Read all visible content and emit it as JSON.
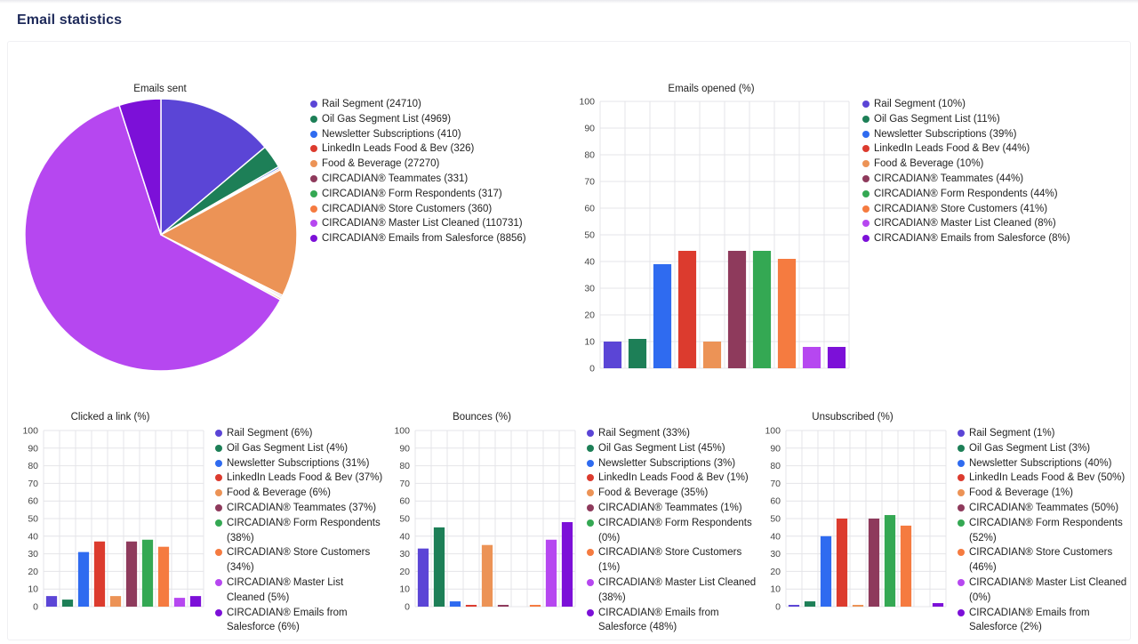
{
  "page": {
    "title": "Email statistics"
  },
  "colors": {
    "segments": [
      "#5b45d6",
      "#1d7f57",
      "#2f6bf0",
      "#dc3b2e",
      "#ec9356",
      "#8e3a5c",
      "#34a853",
      "#f57b40",
      "#b647f0",
      "#7c10d8"
    ],
    "grid": "#e4e4e8",
    "axis": "#444444"
  },
  "chart_data": [
    {
      "id": "emails-sent",
      "type": "pie",
      "title": "Emails sent",
      "labels": [
        "Rail Segment",
        "Oil Gas Segment List",
        "Newsletter Subscriptions",
        "LinkedIn Leads Food & Bev",
        "Food & Beverage",
        "CIRCADIAN® Teammates",
        "CIRCADIAN® Form Respondents",
        "CIRCADIAN® Store Customers",
        "CIRCADIAN® Master List Cleaned",
        "CIRCADIAN® Emails from Salesforce"
      ],
      "values": [
        24710,
        4969,
        410,
        326,
        27270,
        331,
        317,
        360,
        110731,
        8856
      ],
      "legend": [
        "Rail Segment (24710)",
        "Oil Gas Segment List (4969)",
        "Newsletter Subscriptions (410)",
        "LinkedIn Leads Food & Bev (326)",
        "Food & Beverage (27270)",
        "CIRCADIAN® Teammates (331)",
        "CIRCADIAN® Form Respondents (317)",
        "CIRCADIAN® Store Customers (360)",
        "CIRCADIAN® Master List Cleaned (110731)",
        "CIRCADIAN® Emails from Salesforce (8856)"
      ],
      "legend_position": "right"
    },
    {
      "id": "emails-opened",
      "type": "bar",
      "title": "Emails opened (%)",
      "categories": [
        "Rail Segment",
        "Oil Gas Segment List",
        "Newsletter Subscriptions",
        "LinkedIn Leads Food & Bev",
        "Food & Beverage",
        "CIRCADIAN® Teammates",
        "CIRCADIAN® Form Respondents",
        "CIRCADIAN® Store Customers",
        "CIRCADIAN® Master List Cleaned",
        "CIRCADIAN® Emails from Salesforce"
      ],
      "values": [
        10,
        11,
        39,
        44,
        10,
        44,
        44,
        41,
        8,
        8
      ],
      "ylim": [
        0,
        100
      ],
      "yticks": [
        0,
        10,
        20,
        30,
        40,
        50,
        60,
        70,
        80,
        90,
        100
      ],
      "grid": true,
      "legend": [
        "Rail Segment (10%)",
        "Oil Gas Segment List (11%)",
        "Newsletter Subscriptions (39%)",
        "LinkedIn Leads Food & Bev (44%)",
        "Food & Beverage (10%)",
        "CIRCADIAN® Teammates (44%)",
        "CIRCADIAN® Form Respondents (44%)",
        "CIRCADIAN® Store Customers (41%)",
        "CIRCADIAN® Master List Cleaned (8%)",
        "CIRCADIAN® Emails from Salesforce (8%)"
      ],
      "legend_position": "right"
    },
    {
      "id": "clicked-a-link",
      "type": "bar",
      "title": "Clicked a link (%)",
      "categories": [
        "Rail Segment",
        "Oil Gas Segment List",
        "Newsletter Subscriptions",
        "LinkedIn Leads Food & Bev",
        "Food & Beverage",
        "CIRCADIAN® Teammates",
        "CIRCADIAN® Form Respondents",
        "CIRCADIAN® Store Customers",
        "CIRCADIAN® Master List Cleaned",
        "CIRCADIAN® Emails from Salesforce"
      ],
      "values": [
        6,
        4,
        31,
        37,
        6,
        37,
        38,
        34,
        5,
        6
      ],
      "ylim": [
        0,
        100
      ],
      "yticks": [
        0,
        10,
        20,
        30,
        40,
        50,
        60,
        70,
        80,
        90,
        100
      ],
      "grid": true,
      "legend": [
        "Rail Segment (6%)",
        "Oil Gas Segment List (4%)",
        "Newsletter Subscriptions (31%)",
        "LinkedIn Leads Food & Bev (37%)",
        "Food & Beverage (6%)",
        "CIRCADIAN® Teammates (37%)",
        "CIRCADIAN® Form Respondents (38%)",
        "CIRCADIAN® Store Customers (34%)",
        "CIRCADIAN® Master List Cleaned (5%)",
        "CIRCADIAN® Emails from Salesforce (6%)"
      ],
      "legend_position": "right"
    },
    {
      "id": "bounces",
      "type": "bar",
      "title": "Bounces (%)",
      "categories": [
        "Rail Segment",
        "Oil Gas Segment List",
        "Newsletter Subscriptions",
        "LinkedIn Leads Food & Bev",
        "Food & Beverage",
        "CIRCADIAN® Teammates",
        "CIRCADIAN® Form Respondents",
        "CIRCADIAN® Store Customers",
        "CIRCADIAN® Master List Cleaned",
        "CIRCADIAN® Emails from Salesforce"
      ],
      "values": [
        33,
        45,
        3,
        1,
        35,
        1,
        0,
        1,
        38,
        48
      ],
      "ylim": [
        0,
        100
      ],
      "yticks": [
        0,
        10,
        20,
        30,
        40,
        50,
        60,
        70,
        80,
        90,
        100
      ],
      "grid": true,
      "legend": [
        "Rail Segment (33%)",
        "Oil Gas Segment List (45%)",
        "Newsletter Subscriptions (3%)",
        "LinkedIn Leads Food & Bev (1%)",
        "Food & Beverage (35%)",
        "CIRCADIAN® Teammates (1%)",
        "CIRCADIAN® Form Respondents (0%)",
        "CIRCADIAN® Store Customers (1%)",
        "CIRCADIAN® Master List Cleaned (38%)",
        "CIRCADIAN® Emails from Salesforce (48%)"
      ],
      "legend_position": "right"
    },
    {
      "id": "unsubscribed",
      "type": "bar",
      "title": "Unsubscribed (%)",
      "categories": [
        "Rail Segment",
        "Oil Gas Segment List",
        "Newsletter Subscriptions",
        "LinkedIn Leads Food & Bev",
        "Food & Beverage",
        "CIRCADIAN® Teammates",
        "CIRCADIAN® Form Respondents",
        "CIRCADIAN® Store Customers",
        "CIRCADIAN® Master List Cleaned",
        "CIRCADIAN® Emails from Salesforce"
      ],
      "values": [
        1,
        3,
        40,
        50,
        1,
        50,
        52,
        46,
        0,
        2
      ],
      "ylim": [
        0,
        100
      ],
      "yticks": [
        0,
        10,
        20,
        30,
        40,
        50,
        60,
        70,
        80,
        90,
        100
      ],
      "grid": true,
      "legend": [
        "Rail Segment (1%)",
        "Oil Gas Segment List (3%)",
        "Newsletter Subscriptions (40%)",
        "LinkedIn Leads Food & Bev (50%)",
        "Food & Beverage (1%)",
        "CIRCADIAN® Teammates (50%)",
        "CIRCADIAN® Form Respondents (52%)",
        "CIRCADIAN® Store Customers (46%)",
        "CIRCADIAN® Master List Cleaned (0%)",
        "CIRCADIAN® Emails from Salesforce (2%)"
      ],
      "legend_position": "right"
    }
  ]
}
